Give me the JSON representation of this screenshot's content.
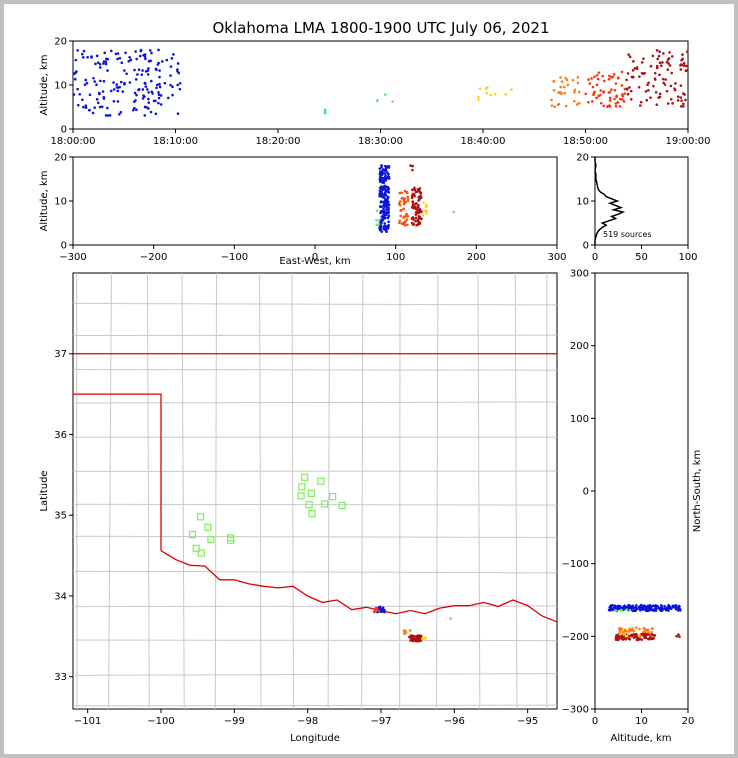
{
  "chart_data": [
    {
      "panel": "time-altitude",
      "type": "scatter",
      "title": "Oklahoma LMA 1800-1900 UTC July 06, 2021",
      "xlabel": "",
      "ylabel": "Altitude, km",
      "xticks": [
        "18:00:00",
        "18:10:00",
        "18:20:00",
        "18:30:00",
        "18:40:00",
        "18:50:00",
        "19:00:00"
      ],
      "yticks": [
        "0",
        "10",
        "20"
      ],
      "xlim": [
        0,
        60
      ],
      "ylim": [
        0,
        20
      ],
      "clusters": [
        {
          "t": [
            0,
            10.5
          ],
          "z": [
            3,
            18
          ],
          "color": "#0a14d8",
          "n": 180
        },
        {
          "t": [
            24.6,
            24.6
          ],
          "z": [
            3.5,
            5
          ],
          "color": "#22dddd",
          "n": 3
        },
        {
          "t": [
            29.5,
            31.5
          ],
          "z": [
            6,
            8
          ],
          "color": "#6be86b",
          "n": 4
        },
        {
          "t": [
            39.5,
            43.5
          ],
          "z": [
            6,
            10.5
          ],
          "color": "#f3d21a",
          "n": 10
        },
        {
          "t": [
            46.5,
            49.5
          ],
          "z": [
            5,
            12
          ],
          "color": "#ff7a10",
          "n": 30
        },
        {
          "t": [
            50,
            54
          ],
          "z": [
            5,
            13
          ],
          "color": "#ff3010",
          "n": 60
        },
        {
          "t": [
            54,
            60
          ],
          "z": [
            5,
            18
          ],
          "color": "#b01010",
          "n": 100
        }
      ]
    },
    {
      "panel": "east-west-altitude",
      "type": "scatter",
      "xlabel": "East-West, km",
      "ylabel": "Altitude, km",
      "xticks": [
        "−300",
        "−200",
        "−100",
        "0",
        "100",
        "200",
        "300"
      ],
      "yticks": [
        "0",
        "10",
        "20"
      ],
      "xlim": [
        -300,
        300
      ],
      "ylim": [
        0,
        20
      ],
      "clusters": [
        {
          "x": [
            80,
            92
          ],
          "z": [
            3,
            18.5
          ],
          "color": "#0a14d8",
          "n": 180
        },
        {
          "x": [
            76,
            80
          ],
          "z": [
            3,
            8
          ],
          "color": "#6be86b",
          "n": 6
        },
        {
          "x": [
            104,
            116
          ],
          "z": [
            4.5,
            12.5
          ],
          "color": "#ff5010",
          "n": 40
        },
        {
          "x": [
            120,
            132
          ],
          "z": [
            4.5,
            13
          ],
          "color": "#b01010",
          "n": 80
        },
        {
          "x": [
            118,
            122
          ],
          "z": [
            17,
            18.5
          ],
          "color": "#b01010",
          "n": 3
        },
        {
          "x": [
            132,
            140
          ],
          "z": [
            6,
            10
          ],
          "color": "#f3d21a",
          "n": 8
        },
        {
          "x": [
            172,
            172
          ],
          "z": [
            7.5,
            7.5
          ],
          "color": "#6be86b",
          "n": 1
        }
      ]
    },
    {
      "panel": "altitude-histogram",
      "type": "line",
      "xticks": [
        "0",
        "50",
        "100"
      ],
      "yticks": [
        "0",
        "10",
        "20"
      ],
      "xlim": [
        0,
        100
      ],
      "ylim": [
        0,
        20
      ],
      "annotation": "519 sources",
      "profile": [
        [
          0,
          0
        ],
        [
          0,
          1
        ],
        [
          1,
          2
        ],
        [
          3,
          3
        ],
        [
          5,
          3.5
        ],
        [
          8,
          4
        ],
        [
          12,
          4.5
        ],
        [
          8,
          5
        ],
        [
          15,
          5.5
        ],
        [
          22,
          6
        ],
        [
          18,
          6.5
        ],
        [
          25,
          7
        ],
        [
          30,
          7.5
        ],
        [
          20,
          8
        ],
        [
          28,
          8.5
        ],
        [
          22,
          9
        ],
        [
          16,
          9.5
        ],
        [
          24,
          10
        ],
        [
          18,
          10.5
        ],
        [
          12,
          11
        ],
        [
          10,
          11.5
        ],
        [
          6,
          12
        ],
        [
          4,
          12.5
        ],
        [
          3,
          13
        ],
        [
          2,
          14
        ],
        [
          1,
          15
        ],
        [
          1,
          16
        ],
        [
          0,
          17
        ],
        [
          1,
          18
        ],
        [
          0,
          19
        ],
        [
          0,
          20
        ]
      ]
    },
    {
      "panel": "plan-view",
      "type": "scatter",
      "xlabel": "Longitude",
      "ylabel": "Latitude",
      "xticks": [
        "−101",
        "−100",
        "−99",
        "−98",
        "−97",
        "−96",
        "−95"
      ],
      "yticks": [
        "33",
        "34",
        "35",
        "36",
        "37"
      ],
      "xlim": [
        -101.2,
        -94.6
      ],
      "ylim": [
        32.6,
        38.0
      ],
      "stations": [
        [
          -98.04,
          35.47
        ],
        [
          -97.82,
          35.42
        ],
        [
          -98.08,
          35.35
        ],
        [
          -97.95,
          35.27
        ],
        [
          -98.09,
          35.24
        ],
        [
          -97.66,
          35.23
        ],
        [
          -97.98,
          35.13
        ],
        [
          -97.77,
          35.14
        ],
        [
          -97.53,
          35.12
        ],
        [
          -97.94,
          35.02
        ],
        [
          -99.46,
          34.98
        ],
        [
          -99.36,
          34.85
        ],
        [
          -99.57,
          34.76
        ],
        [
          -99.32,
          34.7
        ],
        [
          -99.05,
          34.72
        ],
        [
          -99.05,
          34.69
        ],
        [
          -99.52,
          34.59
        ],
        [
          -99.45,
          34.53
        ]
      ],
      "clusters": [
        {
          "x": [
            -97.05,
            -96.95
          ],
          "y": [
            33.8,
            33.87
          ],
          "color": "#0a14d8",
          "n": 25
        },
        {
          "x": [
            -97.1,
            -97.02
          ],
          "y": [
            33.8,
            33.86
          ],
          "color": "#ff3010",
          "n": 6
        },
        {
          "x": [
            -96.7,
            -96.6
          ],
          "y": [
            33.53,
            33.58
          ],
          "color": "#ff7a10",
          "n": 8
        },
        {
          "x": [
            -96.45,
            -96.38
          ],
          "y": [
            33.46,
            33.51
          ],
          "color": "#f3d21a",
          "n": 5
        },
        {
          "x": [
            -96.62,
            -96.45
          ],
          "y": [
            33.44,
            33.51
          ],
          "color": "#b01010",
          "n": 40
        },
        {
          "x": [
            -96.05,
            -96.05
          ],
          "y": [
            33.72,
            33.72
          ],
          "color": "#6be86b",
          "n": 1
        }
      ]
    },
    {
      "panel": "altitude-north-south",
      "type": "scatter",
      "xlabel": "Altitude, km",
      "ylabel": "North-South, km",
      "xticks": [
        "0",
        "10",
        "20"
      ],
      "yticks": [
        "−300",
        "−200",
        "−100",
        "0",
        "100",
        "200",
        "300"
      ],
      "xlim": [
        0,
        20
      ],
      "ylim": [
        -300,
        300
      ],
      "clusters": [
        {
          "z": [
            3,
            18.5
          ],
          "y": [
            -165,
            -157
          ],
          "color": "#0a14d8",
          "n": 180
        },
        {
          "z": [
            3,
            8
          ],
          "y": [
            -165,
            -160
          ],
          "color": "#6be86b",
          "n": 6
        },
        {
          "z": [
            4.5,
            12.5
          ],
          "y": [
            -195,
            -188
          ],
          "color": "#ff7a10",
          "n": 30
        },
        {
          "z": [
            4.5,
            13
          ],
          "y": [
            -205,
            -197
          ],
          "color": "#b01010",
          "n": 80
        },
        {
          "z": [
            17,
            18.5
          ],
          "y": [
            -202,
            -197
          ],
          "color": "#b01010",
          "n": 3
        },
        {
          "z": [
            5,
            10
          ],
          "y": [
            -200,
            -194
          ],
          "color": "#f3d21a",
          "n": 8
        }
      ]
    }
  ]
}
